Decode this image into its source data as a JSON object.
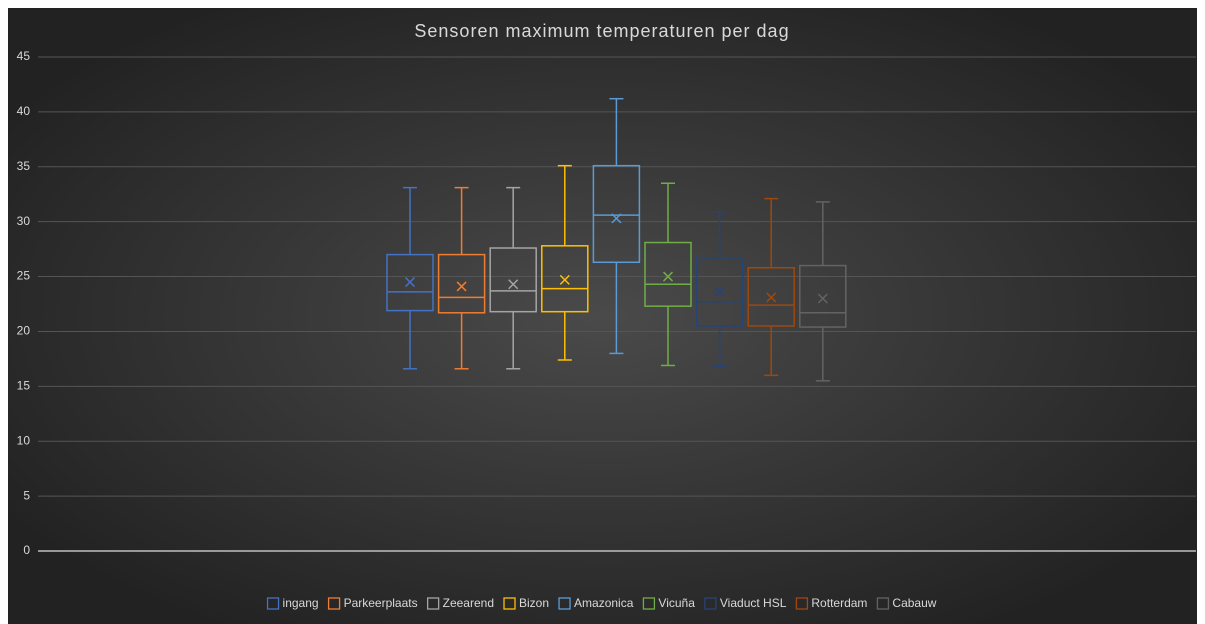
{
  "chart_data": {
    "type": "box",
    "title": "Sensoren maximum temperaturen per dag",
    "ylim": [
      0,
      45
    ],
    "yticks": [
      0,
      5,
      10,
      15,
      20,
      25,
      30,
      35,
      40,
      45
    ],
    "grid": true,
    "legend": "bottom",
    "series": [
      {
        "name": "ingang",
        "color": "#4472c4",
        "min": 16.6,
        "q1": 21.9,
        "median": 23.6,
        "q3": 27.0,
        "max": 33.1,
        "mean": 24.5
      },
      {
        "name": "Parkeerplaats",
        "color": "#ed7d31",
        "min": 16.6,
        "q1": 21.7,
        "median": 23.1,
        "q3": 27.0,
        "max": 33.1,
        "mean": 24.1
      },
      {
        "name": "Zeearend",
        "color": "#a5a5a5",
        "min": 16.6,
        "q1": 21.8,
        "median": 23.7,
        "q3": 27.6,
        "max": 33.1,
        "mean": 24.3
      },
      {
        "name": "Bizon",
        "color": "#ffc000",
        "min": 17.4,
        "q1": 21.8,
        "median": 23.9,
        "q3": 27.8,
        "max": 35.1,
        "mean": 24.7
      },
      {
        "name": "Amazonica",
        "color": "#5b9bd5",
        "min": 18.0,
        "q1": 26.3,
        "median": 30.6,
        "q3": 35.1,
        "max": 41.2,
        "mean": 30.3
      },
      {
        "name": "Vicuña",
        "color": "#70ad47",
        "min": 16.9,
        "q1": 22.3,
        "median": 24.3,
        "q3": 28.1,
        "max": 33.5,
        "mean": 25.0
      },
      {
        "name": "Viaduct HSL",
        "color": "#264478",
        "min": 16.8,
        "q1": 20.5,
        "median": 22.7,
        "q3": 26.7,
        "max": 30.9,
        "mean": 23.6
      },
      {
        "name": "Rotterdam",
        "color": "#9e480e",
        "min": 16.0,
        "q1": 20.5,
        "median": 22.4,
        "q3": 25.8,
        "max": 32.1,
        "mean": 23.1
      },
      {
        "name": "Cabauw",
        "color": "#636363",
        "min": 15.5,
        "q1": 20.4,
        "median": 21.7,
        "q3": 26.0,
        "max": 31.8,
        "mean": 23.0
      }
    ]
  }
}
